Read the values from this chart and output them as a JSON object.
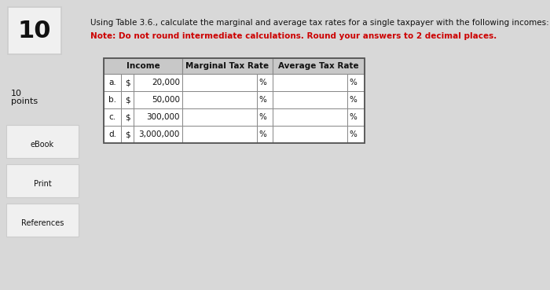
{
  "question_number": "10",
  "sidebar_items": [
    "eBook",
    "Print",
    "References"
  ],
  "instruction_text": "Using Table 3.6., calculate the marginal and average tax rates for a single taxpayer with the following incomes:",
  "note_text": "Note: Do not round intermediate calculations. Round your answers to 2 decimal places.",
  "rows": [
    {
      "label": "a.",
      "currency": "$",
      "income": "20,000",
      "marginal": "%",
      "average": "%"
    },
    {
      "label": "b.",
      "currency": "$",
      "income": "50,000",
      "marginal": "%",
      "average": "%"
    },
    {
      "label": "c.",
      "currency": "$",
      "income": "300,000",
      "marginal": "%",
      "average": "%"
    },
    {
      "label": "d.",
      "currency": "$",
      "income": "3,000,000",
      "marginal": "%",
      "average": "%"
    }
  ],
  "bg_color": "#d8d8d8",
  "table_bg": "#ffffff",
  "header_bg": "#c8c8c8",
  "border_color": "#888888",
  "text_color": "#111111",
  "instruction_color": "#111111",
  "note_color": "#cc0000",
  "box_bg": "#f0f0f0",
  "box_border": "#cccccc"
}
